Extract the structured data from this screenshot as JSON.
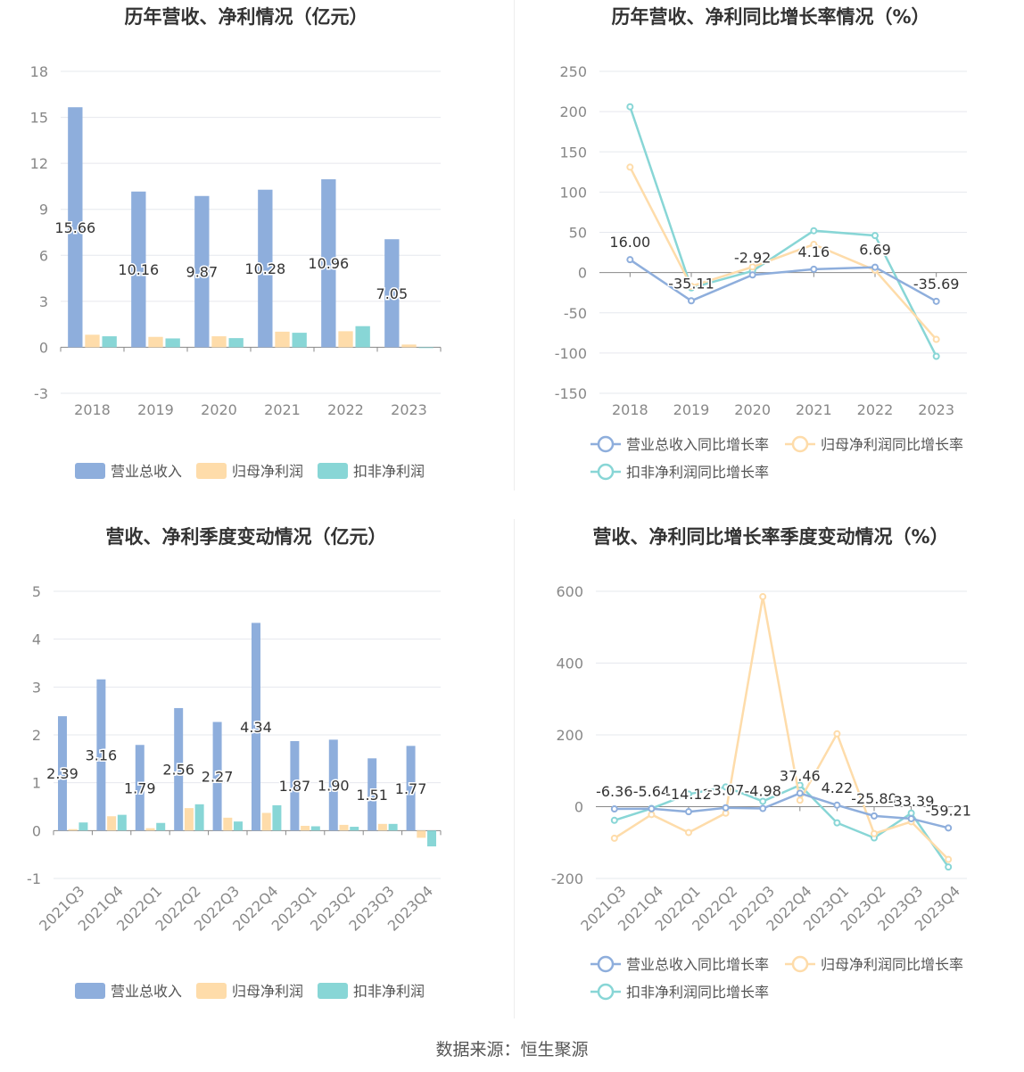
{
  "footer": "数据来源：恒生聚源",
  "colors": {
    "revenue": "#8eaedc",
    "net_profit": "#fedcaa",
    "deducted": "#88d6d6"
  },
  "chart_data": [
    {
      "id": "annual-amounts",
      "type": "bar",
      "title": "历年营收、净利情况（亿元）",
      "categories": [
        "2018",
        "2019",
        "2020",
        "2021",
        "2022",
        "2023"
      ],
      "ylim": [
        -3,
        18
      ],
      "yticks": [
        -3,
        0,
        3,
        6,
        9,
        12,
        15,
        18
      ],
      "grid": true,
      "legend_position": "bottom",
      "series": [
        {
          "name": "营业总收入",
          "color": "#8eaedc",
          "values": [
            15.66,
            10.16,
            9.87,
            10.28,
            10.96,
            7.05
          ],
          "labels": [
            "15.66",
            "10.16",
            "9.87",
            "10.28",
            "10.96",
            "7.05"
          ]
        },
        {
          "name": "归母净利润",
          "color": "#fedcaa",
          "values": [
            0.82,
            0.68,
            0.72,
            1.02,
            1.05,
            0.18
          ]
        },
        {
          "name": "扣非净利润",
          "color": "#88d6d6",
          "values": [
            0.72,
            0.58,
            0.6,
            0.95,
            1.38,
            -0.05
          ]
        }
      ]
    },
    {
      "id": "annual-growth",
      "type": "line",
      "title": "历年营收、净利同比增长率情况（%）",
      "categories": [
        "2018",
        "2019",
        "2020",
        "2021",
        "2022",
        "2023"
      ],
      "ylim": [
        -150,
        250
      ],
      "yticks": [
        -150,
        -100,
        -50,
        0,
        50,
        100,
        150,
        200,
        250
      ],
      "grid": true,
      "legend_position": "bottom",
      "series": [
        {
          "name": "营业总收入同比增长率",
          "color": "#8eaedc",
          "values": [
            16.0,
            -35.11,
            -2.92,
            4.16,
            6.69,
            -35.69
          ],
          "labels": [
            "16.00",
            "-35.11",
            "-2.92",
            "4.16",
            "6.69",
            "-35.69"
          ]
        },
        {
          "name": "归母净利润同比增长率",
          "color": "#fedcaa",
          "values": [
            131,
            -17,
            7,
            35,
            3,
            -83
          ]
        },
        {
          "name": "扣非净利润同比增长率",
          "color": "#88d6d6",
          "values": [
            206,
            -19,
            2,
            52,
            46,
            -104
          ]
        }
      ]
    },
    {
      "id": "quarterly-amounts",
      "type": "bar",
      "title": "营收、净利季度变动情况（亿元）",
      "categories": [
        "2021Q3",
        "2021Q4",
        "2022Q1",
        "2022Q2",
        "2022Q3",
        "2022Q4",
        "2023Q1",
        "2023Q2",
        "2023Q3",
        "2023Q4"
      ],
      "ylim": [
        -1,
        5
      ],
      "yticks": [
        -1,
        0,
        1,
        2,
        3,
        4,
        5
      ],
      "grid": true,
      "legend_position": "bottom",
      "series": [
        {
          "name": "营业总收入",
          "color": "#8eaedc",
          "values": [
            2.39,
            3.16,
            1.79,
            2.56,
            2.27,
            4.34,
            1.87,
            1.9,
            1.51,
            1.77
          ],
          "labels": [
            "2.39",
            "3.16",
            "1.79",
            "2.56",
            "2.27",
            "4.34",
            "1.87",
            "1.90",
            "1.51",
            "1.77"
          ]
        },
        {
          "name": "归母净利润",
          "color": "#fedcaa",
          "values": [
            0.03,
            0.3,
            0.05,
            0.47,
            0.27,
            0.37,
            0.1,
            0.12,
            0.14,
            -0.15
          ]
        },
        {
          "name": "扣非净利润",
          "color": "#88d6d6",
          "values": [
            0.17,
            0.33,
            0.16,
            0.55,
            0.19,
            0.53,
            0.09,
            0.08,
            0.14,
            -0.33
          ]
        }
      ]
    },
    {
      "id": "quarterly-growth",
      "type": "line",
      "title": "营收、净利同比增长率季度变动情况（%）",
      "categories": [
        "2021Q3",
        "2021Q4",
        "2022Q1",
        "2022Q2",
        "2022Q3",
        "2022Q4",
        "2023Q1",
        "2023Q2",
        "2023Q3",
        "2023Q4"
      ],
      "ylim": [
        -200,
        600
      ],
      "yticks": [
        -200,
        0,
        200,
        400,
        600
      ],
      "grid": true,
      "legend_position": "bottom",
      "series": [
        {
          "name": "营业总收入同比增长率",
          "color": "#8eaedc",
          "values": [
            -6.36,
            -5.64,
            -14.12,
            -3.07,
            -4.98,
            37.46,
            4.22,
            -25.8,
            -33.39,
            -59.21
          ],
          "labels": [
            "-6.36",
            "-5.64",
            "-14.12",
            "-3.07",
            "-4.98",
            "37.46",
            "4.22",
            "-25.80",
            "-33.39",
            "-59.21"
          ]
        },
        {
          "name": "归母净利润同比增长率",
          "color": "#fedcaa",
          "values": [
            -88,
            -22,
            -72,
            -18,
            585,
            18,
            203,
            -75,
            -42,
            -147
          ]
        },
        {
          "name": "扣非净利润同比增长率",
          "color": "#88d6d6",
          "values": [
            -38,
            -5,
            35,
            55,
            15,
            60,
            -45,
            -87,
            -18,
            -168
          ]
        }
      ]
    }
  ]
}
